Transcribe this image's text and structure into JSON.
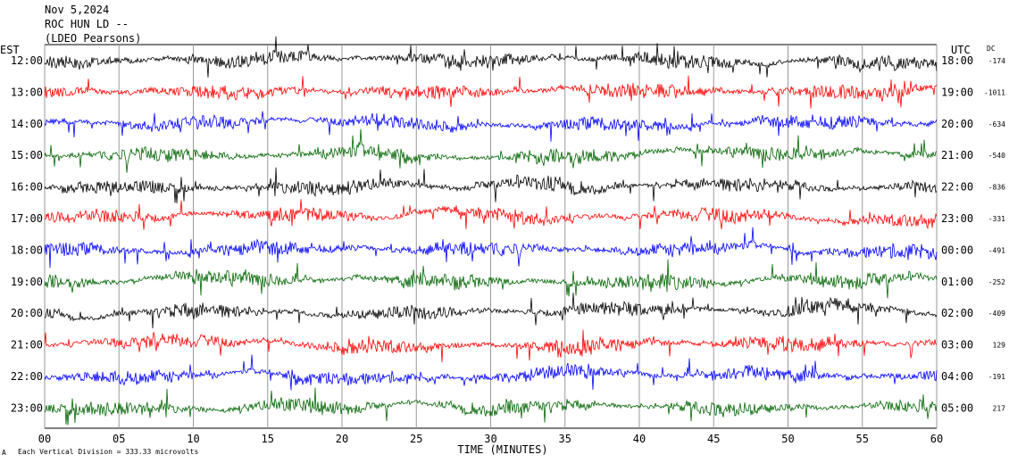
{
  "header": {
    "date": "Nov 5,2024",
    "station": "ROC HUN LD --",
    "network": "(LDEO Pearsons)"
  },
  "left_zone": "EST",
  "right_zone": "UTC",
  "dc_header": "DC",
  "footer": {
    "note": "Each Vertical Division =  333.33 microvolts",
    "mark": "A"
  },
  "chart_data": {
    "type": "line",
    "subtype": "helicorder",
    "xlabel": "TIME (MINUTES)",
    "xlim": [
      0,
      60
    ],
    "xticks": [
      "00",
      "05",
      "10",
      "15",
      "20",
      "25",
      "30",
      "35",
      "40",
      "45",
      "50",
      "55",
      "60"
    ],
    "vertical_gridlines_every_minutes": 5,
    "trace_colors": [
      "#000000",
      "#ff0000",
      "#0000ff",
      "#006400"
    ],
    "rows": [
      {
        "est": "12:00",
        "utc": "18:00",
        "dc": "-174"
      },
      {
        "est": "13:00",
        "utc": "19:00",
        "dc": "-1011"
      },
      {
        "est": "14:00",
        "utc": "20:00",
        "dc": "-634"
      },
      {
        "est": "15:00",
        "utc": "21:00",
        "dc": "-540"
      },
      {
        "est": "16:00",
        "utc": "22:00",
        "dc": "-836"
      },
      {
        "est": "17:00",
        "utc": "23:00",
        "dc": "-331"
      },
      {
        "est": "18:00",
        "utc": "00:00",
        "dc": "-491"
      },
      {
        "est": "19:00",
        "utc": "01:00",
        "dc": "-252"
      },
      {
        "est": "20:00",
        "utc": "02:00",
        "dc": "-409"
      },
      {
        "est": "21:00",
        "utc": "03:00",
        "dc": "129"
      },
      {
        "est": "22:00",
        "utc": "04:00",
        "dc": "-191"
      },
      {
        "est": "23:00",
        "utc": "05:00",
        "dc": "217"
      }
    ]
  }
}
